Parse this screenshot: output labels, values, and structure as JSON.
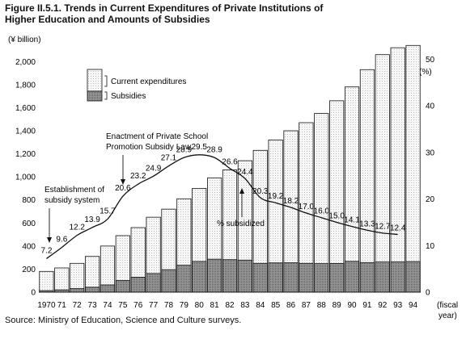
{
  "figure": {
    "title_line1": "Figure II.5.1. Trends in Current Expenditures of Private Institutions of",
    "title_line2": "Higher Education and Amounts of Subsidies",
    "source": "Source: Ministry of Education, Science and Culture surveys."
  },
  "chart_data": {
    "type": "bar",
    "left_unit": "(¥ billion)",
    "right_unit": "(%)",
    "x_unit_line1": "(fiscal",
    "x_unit_line2": "year)",
    "categories": [
      "1970",
      "71",
      "72",
      "73",
      "74",
      "75",
      "76",
      "77",
      "78",
      "79",
      "80",
      "81",
      "82",
      "83",
      "84",
      "85",
      "86",
      "87",
      "88",
      "89",
      "90",
      "91",
      "92",
      "93",
      "94"
    ],
    "y_ticks": [
      "0",
      "200",
      "400",
      "600",
      "800",
      "1,000",
      "1,200",
      "1,400",
      "1,600",
      "1,800",
      "2,000"
    ],
    "y2_ticks": [
      "0",
      "10",
      "20",
      "30",
      "40",
      "50"
    ],
    "ylim": [
      0,
      2100
    ],
    "y2lim": [
      0,
      52
    ],
    "series": [
      {
        "name": "Current expenditures",
        "type": "bar",
        "fill": "dotted-light",
        "values": [
          180,
          210,
          250,
          310,
          400,
          490,
          560,
          650,
          720,
          810,
          900,
          990,
          1060,
          1140,
          1230,
          1320,
          1400,
          1470,
          1550,
          1660,
          1780,
          1930,
          2060,
          2120,
          2140
        ]
      },
      {
        "name": "Subsidies",
        "type": "bar",
        "fill": "dotted-dark",
        "values": [
          13,
          20,
          31,
          43,
          63,
          101,
          130,
          162,
          195,
          234,
          266,
          286,
          282,
          278,
          250,
          254,
          255,
          250,
          248,
          249,
          267,
          257,
          262,
          263,
          265
        ]
      },
      {
        "name": "% subsidized",
        "type": "line",
        "axis": "right",
        "values": [
          7.2,
          9.6,
          12.2,
          13.9,
          15.7,
          20.6,
          23.2,
          24.9,
          27.1,
          28.9,
          29.5,
          28.9,
          26.6,
          24.4,
          20.3,
          19.2,
          18.2,
          17.0,
          16.0,
          15.0,
          14.1,
          13.3,
          12.7,
          12.4,
          null
        ]
      }
    ],
    "legend": {
      "position": "top-left",
      "items": [
        "Current expenditures",
        "Subsidies"
      ]
    },
    "annotations": {
      "establishment": [
        "Establishment of",
        "subsidy system"
      ],
      "enactment": [
        "Enactment of Private School",
        "Promotion Subsidy Law"
      ],
      "line_label": "% subsidized"
    }
  },
  "colors": {
    "bar_light": "#f2f2f2",
    "bar_dark": "#8a8a8a",
    "ink": "#111111"
  }
}
